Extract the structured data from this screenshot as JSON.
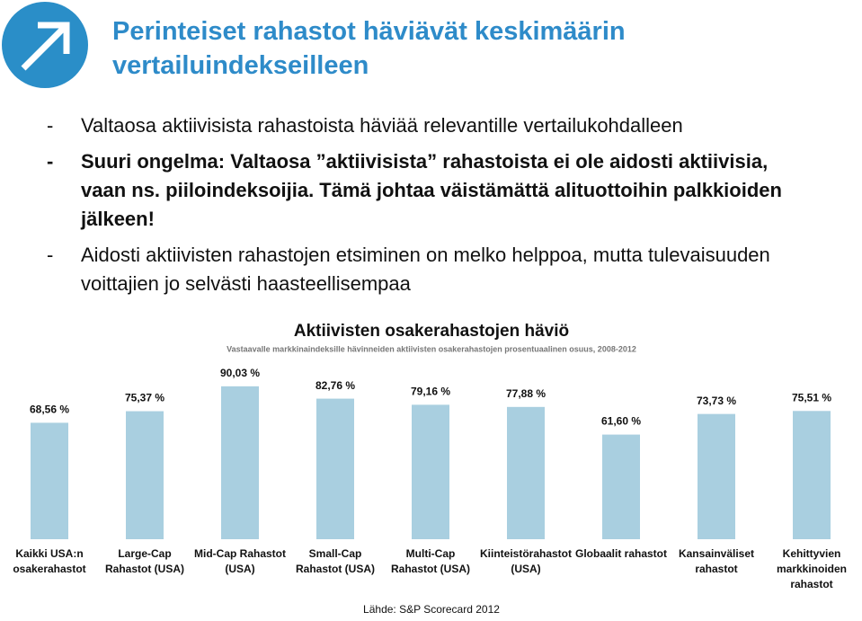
{
  "header": {
    "title": "Perinteiset rahastot häviävät keskimäärin vertailuindekseilleen"
  },
  "bullets": [
    {
      "marker": "-",
      "text": "Valtaosa aktiivisista rahastoista häviää relevantille vertailukohdalleen",
      "bold": false
    },
    {
      "marker": "-",
      "text": "Suuri ongelma: Valtaosa ”aktiivisista” rahastoista ei ole aidosti aktiivisia, vaan ns. piiloindeksoijia. Tämä johtaa väistämättä alituottoihin palkkioiden jälkeen!",
      "bold": true
    },
    {
      "marker": "-",
      "text": "Aidosti aktiivisten rahastojen etsiminen on melko helppoa, mutta tulevaisuuden voittajien jo selvästi haasteellisempaa",
      "bold": false
    }
  ],
  "chart_data": {
    "type": "bar",
    "title": "Aktiivisten osakerahastojen häviö",
    "subtitle": "Vastaavalle markkinaindeksille hävinneiden aktiivisten osakerahastojen prosentuaalinen osuus, 2008-2012",
    "categories": [
      [
        "Kaikki USA:n",
        "osakerahastot"
      ],
      [
        "Large-Cap",
        "Rahastot (USA)"
      ],
      [
        "Mid-Cap Rahastot",
        "(USA)"
      ],
      [
        "Small-Cap",
        "Rahastot (USA)"
      ],
      [
        "Multi-Cap",
        "Rahastot (USA)"
      ],
      [
        "Kiinteistörahastot",
        "(USA)"
      ],
      [
        "Globaalit rahastot"
      ],
      [
        "Kansainväliset",
        "rahastot"
      ],
      [
        "Kehittyvien",
        "markkinoiden",
        "rahastot"
      ]
    ],
    "values": [
      68.56,
      75.37,
      90.03,
      82.76,
      79.16,
      77.88,
      61.6,
      73.73,
      75.51
    ],
    "value_labels": [
      "68,56 %",
      "75,37 %",
      "90,03 %",
      "82,76 %",
      "79,16 %",
      "77,88 %",
      "61,60 %",
      "73,73 %",
      "75,51 %"
    ],
    "color": "#a9cfe0",
    "ylim": [
      0,
      100
    ],
    "source": "Lähde: S&P Scorecard 2012"
  }
}
